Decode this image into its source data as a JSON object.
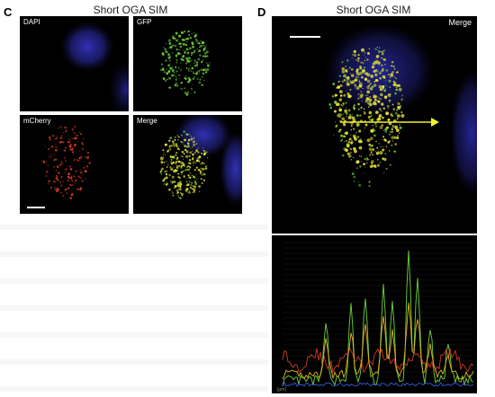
{
  "panel_c": {
    "letter": "C",
    "title": "Short OGA SIM",
    "tiles": [
      {
        "label": "DAPI"
      },
      {
        "label": "GFP"
      },
      {
        "label": "mCherry"
      },
      {
        "label": "Merge"
      }
    ]
  },
  "panel_d": {
    "letter": "D",
    "title": "Short OGA SIM",
    "merge_label": "Merge",
    "axis_unit": "[µm]"
  },
  "colors": {
    "dapi": "#2a2aa8",
    "gfp": "#6fd23a",
    "mcherry": "#d03a22",
    "merge_yellow": "#e6e23a",
    "arrow": "#f0f030"
  }
}
